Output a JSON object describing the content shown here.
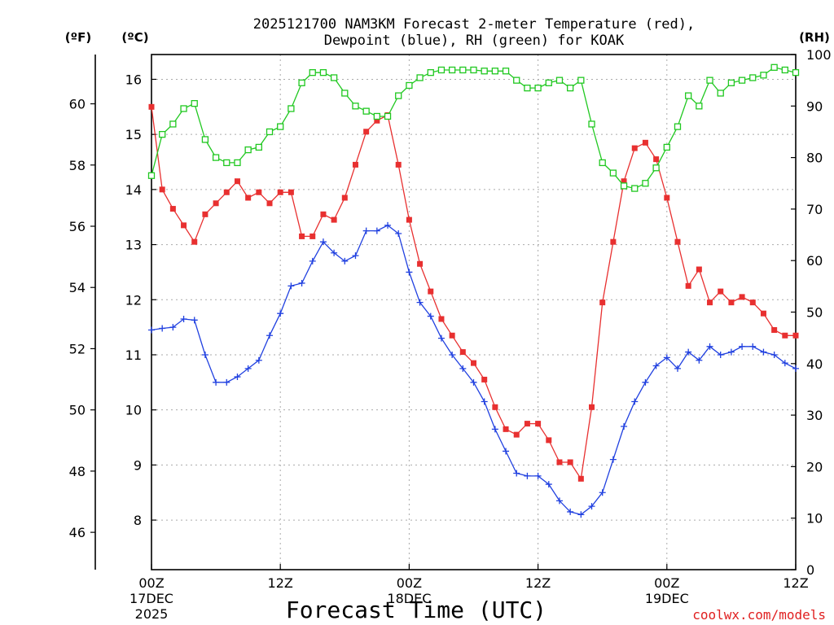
{
  "chart_data": {
    "type": "line",
    "title_line1": "2025121700 NAM3KM Forecast 2-meter Temperature (red),",
    "title_line2": "Dewpoint (blue), RH (green) for KOAK",
    "units": {
      "fahrenheit": "(ºF)",
      "celsius": "(ºC)",
      "rh": "(RH)"
    },
    "xlabel": "Forecast Time (UTC)",
    "credit": "coolwx.com/models",
    "x_ticks": [
      {
        "hour": 0,
        "label1": "00Z",
        "label2": "17DEC",
        "label3": "2025"
      },
      {
        "hour": 12,
        "label1": "12Z",
        "label2": "",
        "label3": ""
      },
      {
        "hour": 24,
        "label1": "00Z",
        "label2": "18DEC",
        "label3": ""
      },
      {
        "hour": 36,
        "label1": "12Z",
        "label2": "",
        "label3": ""
      },
      {
        "hour": 48,
        "label1": "00Z",
        "label2": "19DEC",
        "label3": ""
      },
      {
        "hour": 60,
        "label1": "12Z",
        "label2": "",
        "label3": ""
      }
    ],
    "xlim": [
      0,
      60
    ],
    "ylim_celsius": [
      7.1,
      16.45
    ],
    "ylim_rh": [
      0,
      100
    ],
    "celsius_ticks": [
      "8",
      "9",
      "10",
      "11",
      "12",
      "13",
      "14",
      "15",
      "16"
    ],
    "fahrenheit_ticks": [
      "46",
      "48",
      "50",
      "52",
      "54",
      "56",
      "58",
      "60"
    ],
    "rh_ticks": [
      "0",
      "10",
      "20",
      "30",
      "40",
      "50",
      "60",
      "70",
      "80",
      "90",
      "100"
    ],
    "grid": true,
    "series": [
      {
        "name": "Temperature",
        "unit": "C",
        "color": "#e83030",
        "marker": "filled-square",
        "values": [
          15.5,
          14.0,
          13.65,
          13.35,
          13.05,
          13.55,
          13.75,
          13.95,
          14.15,
          13.85,
          13.95,
          13.75,
          13.95,
          13.95,
          13.15,
          13.15,
          13.55,
          13.45,
          13.85,
          14.45,
          15.05,
          15.25,
          15.35,
          14.45,
          13.45,
          12.65,
          12.15,
          11.65,
          11.35,
          11.05,
          10.85,
          10.55,
          10.05,
          9.65,
          9.55,
          9.75,
          9.75,
          9.45,
          9.05,
          9.05,
          8.75,
          10.05,
          11.95,
          13.05,
          14.15,
          14.75,
          14.85,
          14.55,
          13.85,
          13.05,
          12.25,
          12.55,
          11.95,
          12.15,
          11.95,
          12.05,
          11.95,
          11.75,
          11.45,
          11.35,
          11.35
        ]
      },
      {
        "name": "Dewpoint",
        "unit": "C",
        "color": "#2040e0",
        "marker": "plus",
        "values": [
          11.45,
          11.48,
          11.5,
          11.65,
          11.63,
          11.0,
          10.5,
          10.5,
          10.6,
          10.75,
          10.9,
          11.35,
          11.75,
          12.25,
          12.3,
          12.7,
          13.05,
          12.85,
          12.7,
          12.8,
          13.25,
          13.25,
          13.35,
          13.2,
          12.5,
          11.95,
          11.7,
          11.3,
          11.0,
          10.75,
          10.5,
          10.15,
          9.65,
          9.25,
          8.85,
          8.8,
          8.8,
          8.65,
          8.35,
          8.15,
          8.1,
          8.25,
          8.5,
          9.1,
          9.7,
          10.15,
          10.5,
          10.8,
          10.95,
          10.75,
          11.05,
          10.9,
          11.15,
          11.0,
          11.05,
          11.15,
          11.15,
          11.05,
          11.0,
          10.85,
          10.75
        ]
      },
      {
        "name": "RH",
        "unit": "%",
        "color": "#20c820",
        "marker": "open-square",
        "values": [
          76.5,
          84.5,
          86.5,
          89.5,
          90.5,
          83.5,
          80,
          79,
          79,
          81.5,
          82,
          85,
          86,
          89.5,
          94.5,
          96.5,
          96.5,
          95.5,
          92.5,
          90,
          89,
          88,
          88,
          92,
          94,
          95.5,
          96.5,
          97,
          97,
          97,
          97,
          96.8,
          96.8,
          96.8,
          95,
          93.5,
          93.5,
          94.5,
          95,
          93.5,
          95,
          86.5,
          79,
          77,
          74.5,
          74,
          75,
          78,
          82,
          86,
          92,
          90,
          95,
          92.5,
          94.5,
          95,
          95.5,
          96,
          97.5,
          97,
          96.5
        ]
      }
    ]
  }
}
